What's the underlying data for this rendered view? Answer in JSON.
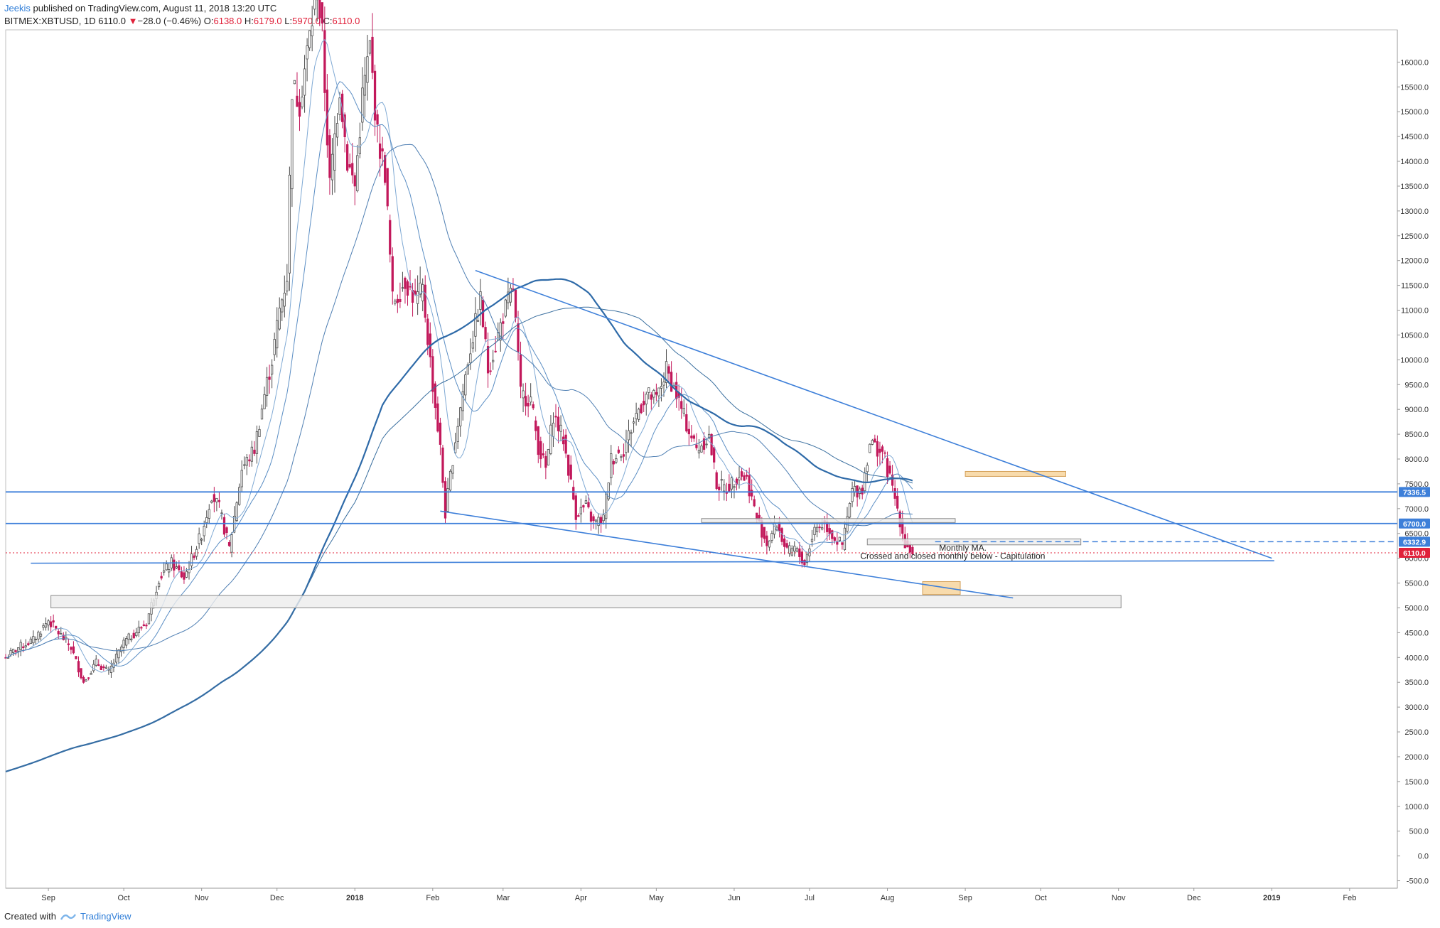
{
  "header": {
    "author": "Jeekis",
    "published": "published on TradingView.com, August 11, 2018 13:20 UTC"
  },
  "symbol": {
    "name": "BITMEX:XBTUSD, 1D",
    "last": "6110.0",
    "change_arrow": "▼",
    "change": "−28.0 (−0.46%)",
    "o_label": "O:",
    "o": "6138.0",
    "h_label": "H:",
    "h": "6179.0",
    "l_label": "L:",
    "l": "5970.0",
    "c_label": "C:",
    "c": "6110.0"
  },
  "footer": {
    "created_with": "Created with",
    "brand": "TradingView"
  },
  "colors": {
    "up": "#4a4a4a",
    "down": "#c2185b",
    "line": "#3d7fd9",
    "ma": "#2e6aa8",
    "orange_box": "#f8d9a8",
    "gray_box": "#ececec",
    "price_tag": "#e0213a"
  },
  "chart_data": {
    "type": "candlestick",
    "symbol": "BITMEX:XBTUSD",
    "interval": "1D",
    "y_axis": {
      "min": -650,
      "max": 16650,
      "ticks": [
        16000,
        15500,
        15000,
        14500,
        14000,
        13500,
        13000,
        12500,
        12000,
        11500,
        11000,
        10500,
        10000,
        9500,
        9000,
        8500,
        8000,
        7500,
        7000,
        6500,
        6000,
        5500,
        5000,
        4500,
        4000,
        3500,
        3000,
        2500,
        2000,
        1500,
        1000,
        500,
        0,
        -500
      ],
      "tick_labels": [
        "16000.0",
        "15500.0",
        "15000.0",
        "14500.0",
        "14000.0",
        "13500.0",
        "13000.0",
        "12500.0",
        "12000.0",
        "11500.0",
        "11000.0",
        "10500.0",
        "10000.0",
        "9500.0",
        "9000.0",
        "8500.0",
        "8000.0",
        "7500.0",
        "7000.0",
        "6500.0",
        "6000.0",
        "5500.0",
        "5000.0",
        "4500.0",
        "4000.0",
        "3500.0",
        "3000.0",
        "2500.0",
        "2000.0",
        "1500.0",
        "1000.0",
        "500.0",
        "0.0",
        "-500.0"
      ]
    },
    "x_axis": {
      "start": "2017-08-15",
      "end": "2019-02-20",
      "ticks": [
        {
          "date": "2017-09-01",
          "label": "Sep"
        },
        {
          "date": "2017-10-01",
          "label": "Oct"
        },
        {
          "date": "2017-11-01",
          "label": "Nov"
        },
        {
          "date": "2017-12-01",
          "label": "Dec"
        },
        {
          "date": "2018-01-01",
          "label": "2018"
        },
        {
          "date": "2018-02-01",
          "label": "Feb"
        },
        {
          "date": "2018-03-01",
          "label": "Mar"
        },
        {
          "date": "2018-04-01",
          "label": "Apr"
        },
        {
          "date": "2018-05-01",
          "label": "May"
        },
        {
          "date": "2018-06-01",
          "label": "Jun"
        },
        {
          "date": "2018-07-01",
          "label": "Jul"
        },
        {
          "date": "2018-08-01",
          "label": "Aug"
        },
        {
          "date": "2018-09-01",
          "label": "Sep"
        },
        {
          "date": "2018-10-01",
          "label": "Oct"
        },
        {
          "date": "2018-11-01",
          "label": "Nov"
        },
        {
          "date": "2018-12-01",
          "label": "Dec"
        },
        {
          "date": "2019-01-01",
          "label": "2019"
        },
        {
          "date": "2019-02-01",
          "label": "Feb"
        }
      ]
    },
    "close_path": [
      [
        "2017-08-15",
        4000
      ],
      [
        "2017-08-20",
        4200
      ],
      [
        "2017-08-26",
        4350
      ],
      [
        "2017-09-01",
        4750
      ],
      [
        "2017-09-05",
        4500
      ],
      [
        "2017-09-10",
        4200
      ],
      [
        "2017-09-15",
        3500
      ],
      [
        "2017-09-20",
        3900
      ],
      [
        "2017-09-25",
        3700
      ],
      [
        "2017-10-01",
        4300
      ],
      [
        "2017-10-10",
        4700
      ],
      [
        "2017-10-15",
        5600
      ],
      [
        "2017-10-20",
        5900
      ],
      [
        "2017-10-25",
        5600
      ],
      [
        "2017-11-01",
        6500
      ],
      [
        "2017-11-05",
        7300
      ],
      [
        "2017-11-08",
        7000
      ],
      [
        "2017-11-12",
        6200
      ],
      [
        "2017-11-17",
        7800
      ],
      [
        "2017-11-22",
        8200
      ],
      [
        "2017-11-26",
        9300
      ],
      [
        "2017-11-29",
        10000
      ],
      [
        "2017-12-02",
        11000
      ],
      [
        "2017-12-05",
        11700
      ],
      [
        "2017-12-07",
        15500
      ],
      [
        "2017-12-10",
        15200
      ],
      [
        "2017-12-13",
        16200
      ],
      [
        "2017-12-17",
        17500
      ],
      [
        "2017-12-19",
        16500
      ],
      [
        "2017-12-22",
        13500
      ],
      [
        "2017-12-26",
        15500
      ],
      [
        "2017-12-29",
        14000
      ],
      [
        "2018-01-01",
        13500
      ],
      [
        "2018-01-04",
        15300
      ],
      [
        "2018-01-07",
        16300
      ],
      [
        "2018-01-10",
        14500
      ],
      [
        "2018-01-13",
        13800
      ],
      [
        "2018-01-16",
        11200
      ],
      [
        "2018-01-18",
        11300
      ],
      [
        "2018-01-21",
        11600
      ],
      [
        "2018-01-25",
        11200
      ],
      [
        "2018-01-28",
        11400
      ],
      [
        "2018-02-01",
        9500
      ],
      [
        "2018-02-04",
        8200
      ],
      [
        "2018-02-06",
        6900
      ],
      [
        "2018-02-10",
        8400
      ],
      [
        "2018-02-15",
        10000
      ],
      [
        "2018-02-20",
        11200
      ],
      [
        "2018-02-23",
        9800
      ],
      [
        "2018-02-26",
        10300
      ],
      [
        "2018-03-01",
        10900
      ],
      [
        "2018-03-05",
        11450
      ],
      [
        "2018-03-08",
        9300
      ],
      [
        "2018-03-12",
        9200
      ],
      [
        "2018-03-15",
        8250
      ],
      [
        "2018-03-18",
        7800
      ],
      [
        "2018-03-21",
        8900
      ],
      [
        "2018-03-25",
        8400
      ],
      [
        "2018-03-30",
        6900
      ],
      [
        "2018-04-03",
        7050
      ],
      [
        "2018-04-06",
        6700
      ],
      [
        "2018-04-10",
        6800
      ],
      [
        "2018-04-13",
        8000
      ],
      [
        "2018-04-18",
        8200
      ],
      [
        "2018-04-23",
        8900
      ],
      [
        "2018-04-27",
        9300
      ],
      [
        "2018-05-01",
        9200
      ],
      [
        "2018-05-05",
        9800
      ],
      [
        "2018-05-09",
        9300
      ],
      [
        "2018-05-13",
        8700
      ],
      [
        "2018-05-17",
        8200
      ],
      [
        "2018-05-22",
        8450
      ],
      [
        "2018-05-25",
        7500
      ],
      [
        "2018-05-29",
        7400
      ],
      [
        "2018-06-03",
        7700
      ],
      [
        "2018-06-06",
        7600
      ],
      [
        "2018-06-10",
        6800
      ],
      [
        "2018-06-14",
        6300
      ],
      [
        "2018-06-18",
        6700
      ],
      [
        "2018-06-22",
        6100
      ],
      [
        "2018-06-25",
        6200
      ],
      [
        "2018-06-29",
        5900
      ],
      [
        "2018-07-03",
        6600
      ],
      [
        "2018-07-07",
        6700
      ],
      [
        "2018-07-11",
        6400
      ],
      [
        "2018-07-14",
        6250
      ],
      [
        "2018-07-18",
        7350
      ],
      [
        "2018-07-22",
        7400
      ],
      [
        "2018-07-25",
        8350
      ],
      [
        "2018-07-28",
        8200
      ],
      [
        "2018-07-30",
        8150
      ],
      [
        "2018-08-02",
        7600
      ],
      [
        "2018-08-05",
        7000
      ],
      [
        "2018-08-08",
        6300
      ],
      [
        "2018-08-11",
        6110
      ]
    ],
    "horizontal_lines": [
      {
        "price": 7336.5,
        "label": "7336.5",
        "style": "solid"
      },
      {
        "price": 6700.0,
        "label": "6700.0",
        "style": "solid"
      },
      {
        "price": 6332.9,
        "label": "6332.9",
        "style": "dashed"
      },
      {
        "price": 6110.0,
        "label": "6110.0",
        "style": "dotted-red"
      }
    ],
    "trendlines": [
      {
        "from": [
          "2018-02-18",
          11800
        ],
        "to": [
          "2019-01-01",
          6000
        ]
      },
      {
        "from": [
          "2018-02-04",
          6950
        ],
        "to": [
          "2018-09-20",
          5200
        ]
      },
      {
        "from": [
          "2017-08-25",
          5900
        ],
        "to": [
          "2019-01-02",
          5950
        ]
      }
    ],
    "zones": [
      {
        "from": "2018-09-01",
        "to": "2018-10-11",
        "high": 7750,
        "low": 7650,
        "color": "orange"
      },
      {
        "from": "2018-08-15",
        "to": "2018-08-30",
        "high": 5530,
        "low": 5270,
        "color": "orange"
      },
      {
        "from": "2017-09-02",
        "to": "2018-11-02",
        "high": 5250,
        "low": 5000,
        "color": "gray"
      },
      {
        "from": "2018-05-19",
        "to": "2018-08-28",
        "high": 6800,
        "low": 6720,
        "color": "gray"
      },
      {
        "from": "2018-07-24",
        "to": "2018-10-17",
        "high": 6390,
        "low": 6270,
        "color": "gray"
      }
    ],
    "annotations": [
      {
        "text": "Monthly MA.",
        "date": "2018-08-31",
        "price": 6150
      },
      {
        "text": "Crossed and closed monthly below - Capitulation",
        "date": "2018-08-27",
        "price": 5990
      }
    ],
    "last_price": 6110.0
  }
}
